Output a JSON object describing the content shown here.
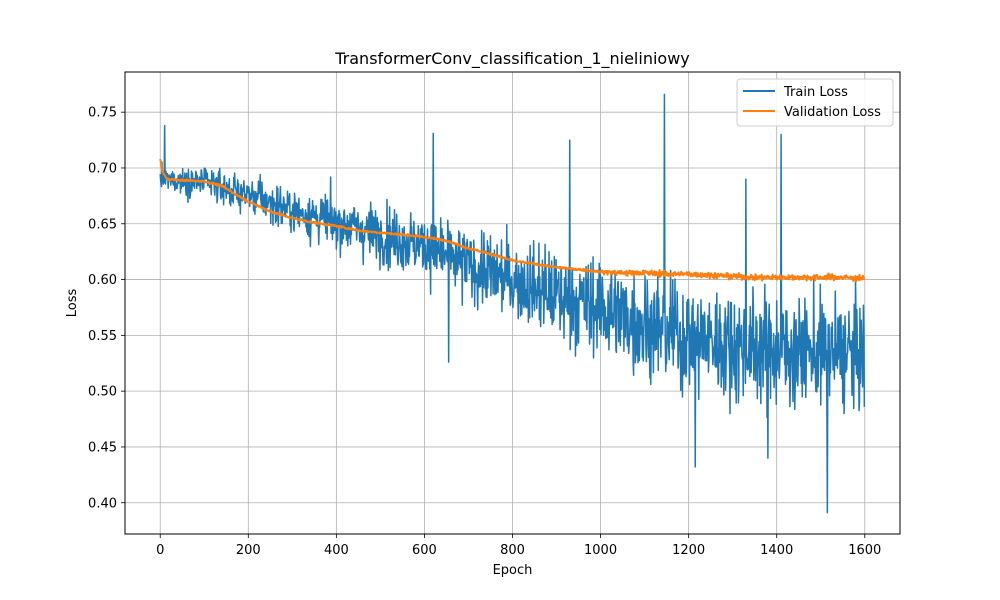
{
  "chart_data": {
    "type": "line",
    "title": "TransformerConv_classification_1_nieliniowy",
    "xlabel": "Epoch",
    "ylabel": "Loss",
    "xlim": [
      -80,
      1680
    ],
    "ylim": [
      0.372,
      0.786
    ],
    "xticks": [
      0,
      200,
      400,
      600,
      800,
      1000,
      1200,
      1400,
      1600
    ],
    "yticks": [
      0.4,
      0.45,
      0.5,
      0.55,
      0.6,
      0.65,
      0.7,
      0.75
    ],
    "grid": true,
    "legend_position": "top-right",
    "epochs": 1600,
    "series": [
      {
        "name": "Train Loss",
        "color": "#1f77b4",
        "trend": [
          [
            0,
            0.69
          ],
          [
            100,
            0.687
          ],
          [
            200,
            0.676
          ],
          [
            300,
            0.662
          ],
          [
            400,
            0.651
          ],
          [
            500,
            0.641
          ],
          [
            600,
            0.63
          ],
          [
            700,
            0.612
          ],
          [
            800,
            0.6
          ],
          [
            900,
            0.585
          ],
          [
            1000,
            0.575
          ],
          [
            1100,
            0.56
          ],
          [
            1200,
            0.548
          ],
          [
            1300,
            0.541
          ],
          [
            1400,
            0.537
          ],
          [
            1500,
            0.535
          ],
          [
            1599,
            0.533
          ]
        ],
        "spread": [
          [
            0,
            0.012
          ],
          [
            200,
            0.018
          ],
          [
            400,
            0.026
          ],
          [
            600,
            0.032
          ],
          [
            800,
            0.04
          ],
          [
            1000,
            0.05
          ],
          [
            1200,
            0.054
          ],
          [
            1599,
            0.056
          ]
        ],
        "spikes": [
          [
            10,
            0.738
          ],
          [
            620,
            0.731
          ],
          [
            1145,
            0.766
          ],
          [
            1410,
            0.73
          ],
          [
            1515,
            0.391
          ],
          [
            1215,
            0.432
          ],
          [
            1380,
            0.44
          ],
          [
            655,
            0.526
          ],
          [
            930,
            0.725
          ],
          [
            1330,
            0.69
          ]
        ]
      },
      {
        "name": "Validation Loss",
        "color": "#ff7f0e",
        "points": [
          [
            0,
            0.708
          ],
          [
            5,
            0.697
          ],
          [
            15,
            0.69
          ],
          [
            50,
            0.689
          ],
          [
            100,
            0.688
          ],
          [
            140,
            0.684
          ],
          [
            160,
            0.679
          ],
          [
            200,
            0.67
          ],
          [
            250,
            0.661
          ],
          [
            300,
            0.655
          ],
          [
            350,
            0.651
          ],
          [
            400,
            0.648
          ],
          [
            450,
            0.644
          ],
          [
            500,
            0.642
          ],
          [
            560,
            0.64
          ],
          [
            600,
            0.638
          ],
          [
            650,
            0.635
          ],
          [
            700,
            0.628
          ],
          [
            750,
            0.623
          ],
          [
            800,
            0.617
          ],
          [
            850,
            0.614
          ],
          [
            900,
            0.611
          ],
          [
            950,
            0.609
          ],
          [
            1000,
            0.607
          ],
          [
            1050,
            0.606
          ],
          [
            1100,
            0.606
          ],
          [
            1150,
            0.605
          ],
          [
            1200,
            0.605
          ],
          [
            1250,
            0.604
          ],
          [
            1300,
            0.603
          ],
          [
            1350,
            0.602
          ],
          [
            1400,
            0.602
          ],
          [
            1450,
            0.602
          ],
          [
            1500,
            0.602
          ],
          [
            1550,
            0.602
          ],
          [
            1599,
            0.601
          ]
        ],
        "noise": 0.0018
      }
    ]
  }
}
